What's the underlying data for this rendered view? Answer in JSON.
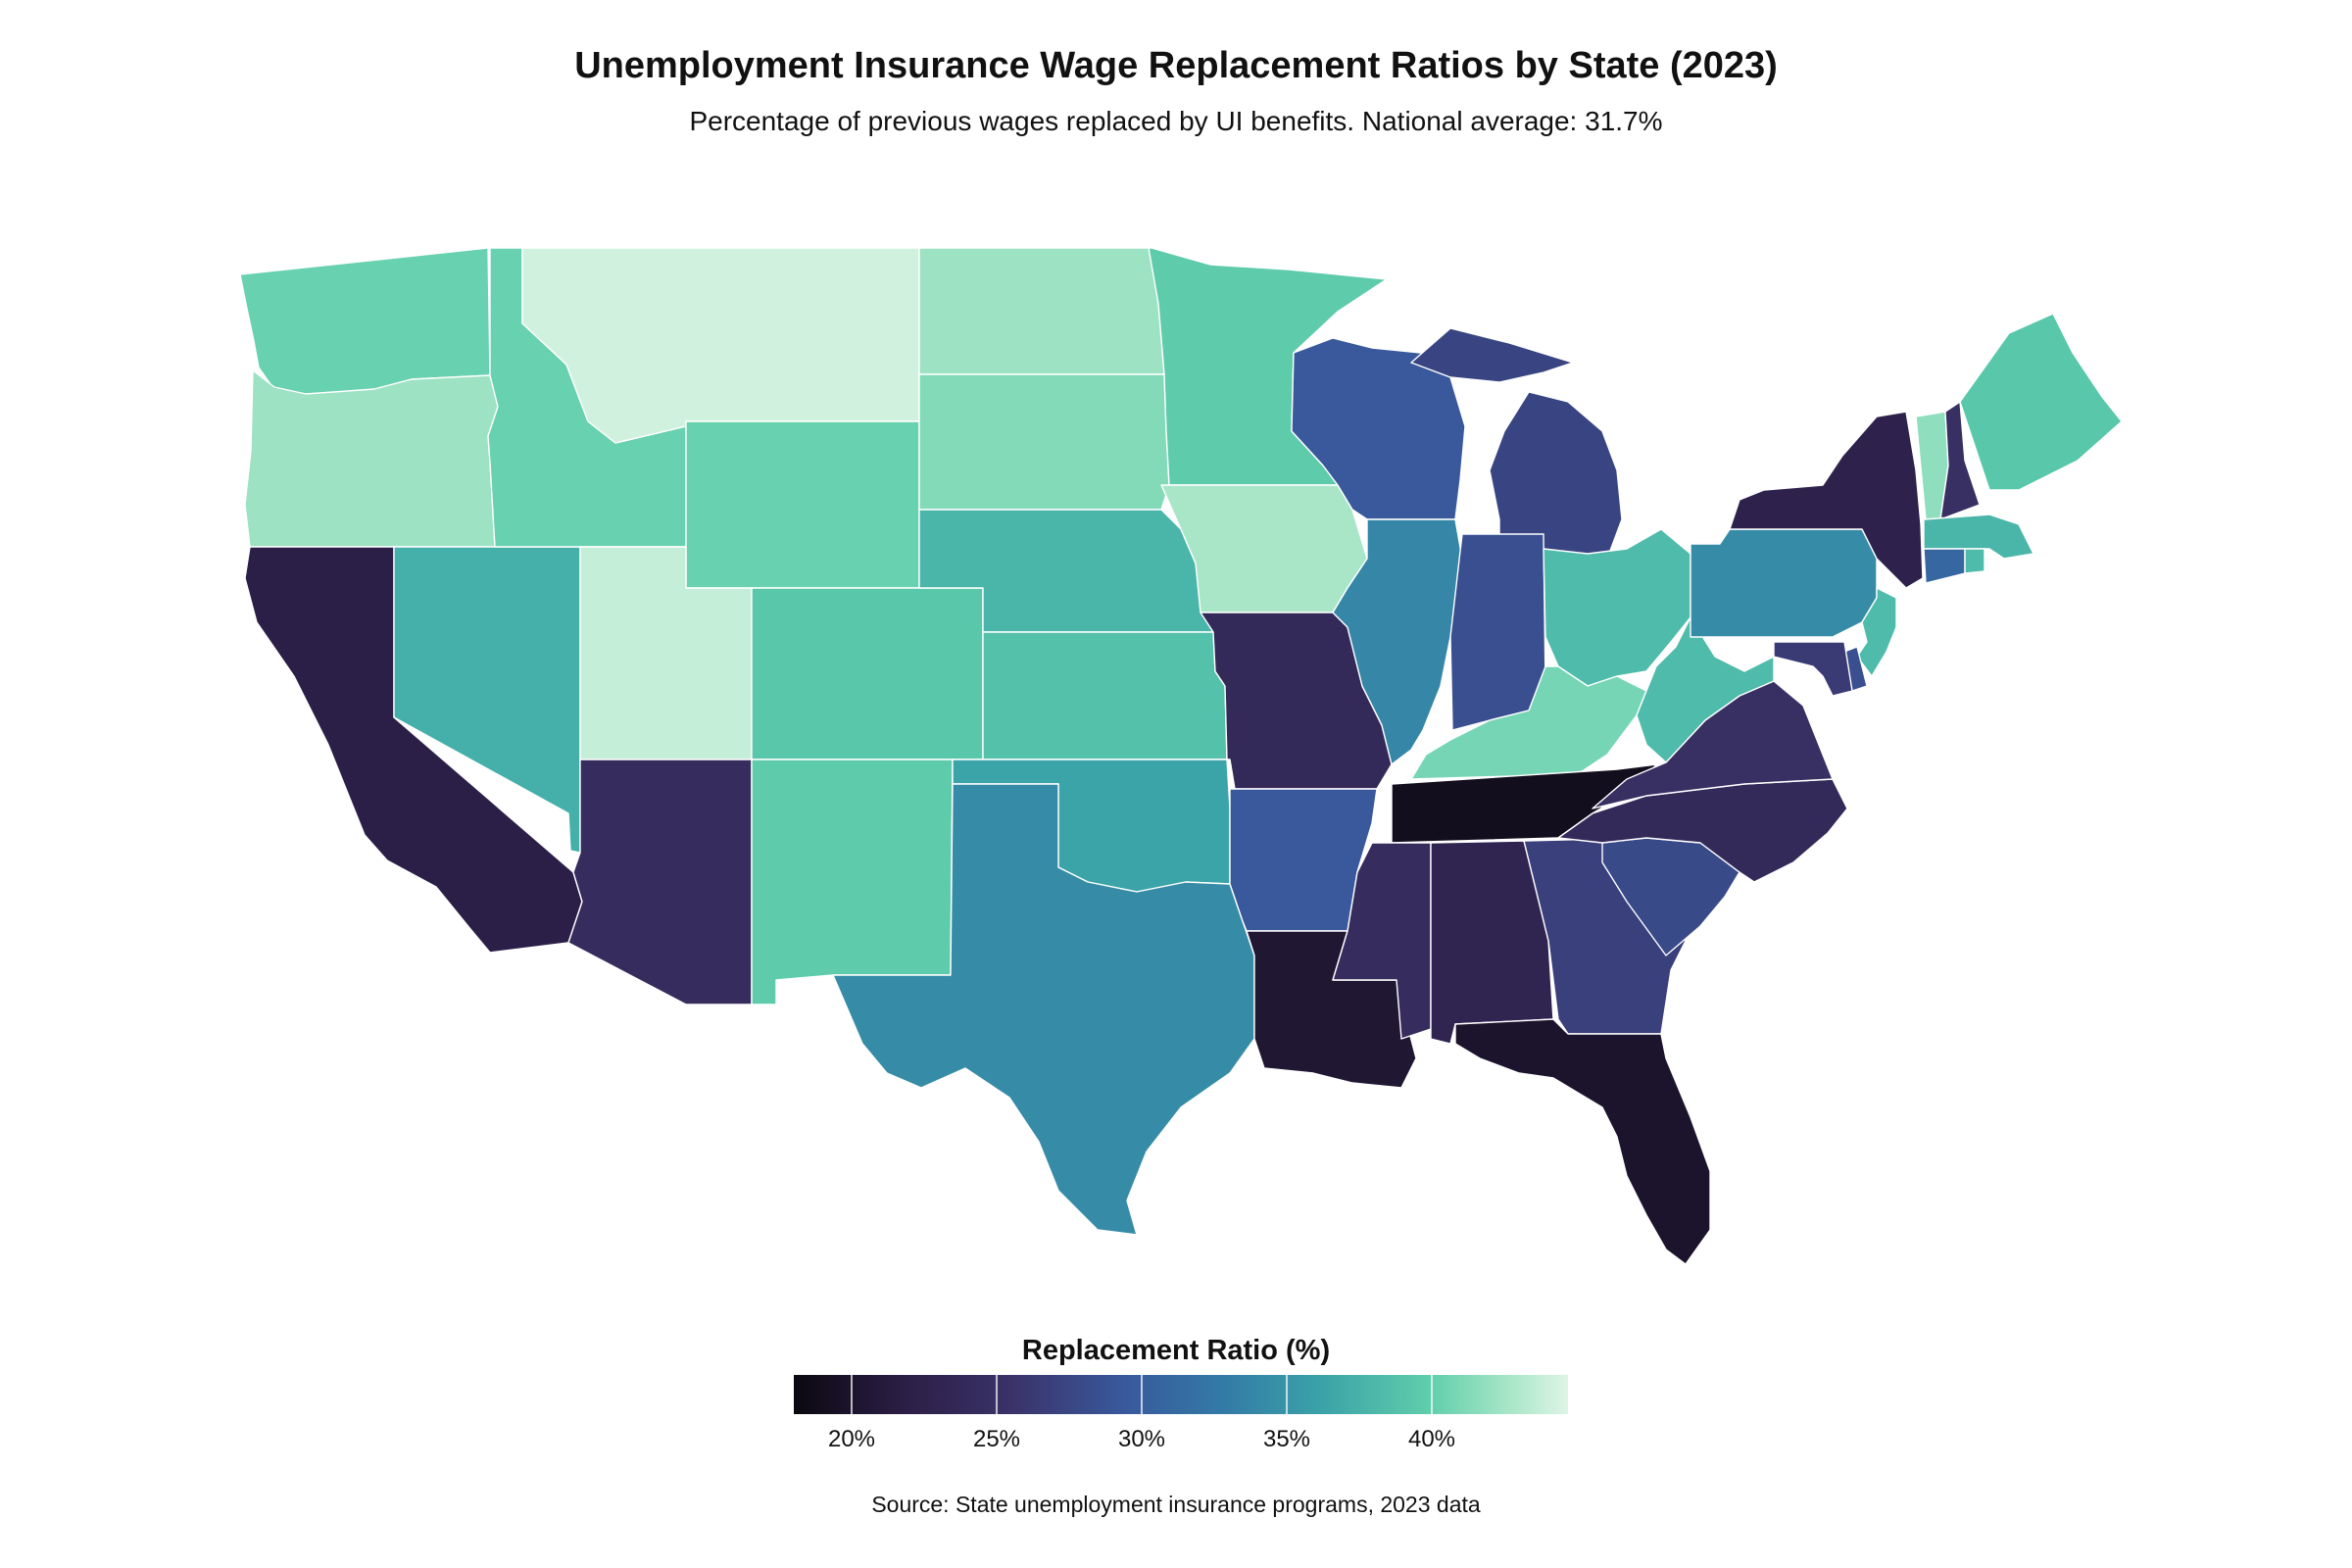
{
  "title": "Unemployment Insurance Wage Replacement Ratios by State (2023)",
  "subtitle": "Percentage of previous wages replaced by UI benefits. National average: 31.7%",
  "legend": {
    "title": "Replacement Ratio (%)",
    "ticks": [
      "20%",
      "25%",
      "30%",
      "35%",
      "40%"
    ]
  },
  "source": "Source: State unemployment insurance programs, 2023 data",
  "colors": {
    "scale_low": "#0b0810",
    "scale_mid": "#3379a6",
    "scale_high": "#def5e6",
    "border": "#ffffff"
  },
  "chart_data": {
    "type": "heatmap",
    "national_average": 31.7,
    "color_range": [
      18,
      45
    ],
    "states": [
      {
        "abbr": "WA",
        "value": 40.5
      },
      {
        "abbr": "OR",
        "value": 42.5
      },
      {
        "abbr": "CA",
        "value": 22.0
      },
      {
        "abbr": "NV",
        "value": 37.5
      },
      {
        "abbr": "ID",
        "value": 40.5
      },
      {
        "abbr": "MT",
        "value": 44.5
      },
      {
        "abbr": "WY",
        "value": 40.5
      },
      {
        "abbr": "UT",
        "value": 44.0
      },
      {
        "abbr": "AZ",
        "value": 24.5
      },
      {
        "abbr": "CO",
        "value": 39.5
      },
      {
        "abbr": "NM",
        "value": 40.0
      },
      {
        "abbr": "ND",
        "value": 42.5
      },
      {
        "abbr": "SD",
        "value": 41.5
      },
      {
        "abbr": "NE",
        "value": 38.0
      },
      {
        "abbr": "KS",
        "value": 39.0
      },
      {
        "abbr": "OK",
        "value": 36.5
      },
      {
        "abbr": "TX",
        "value": 34.5
      },
      {
        "abbr": "MN",
        "value": 40.0
      },
      {
        "abbr": "IA",
        "value": 43.0
      },
      {
        "abbr": "MO",
        "value": 24.0
      },
      {
        "abbr": "AR",
        "value": 29.5
      },
      {
        "abbr": "LA",
        "value": 20.5
      },
      {
        "abbr": "WI",
        "value": 29.5
      },
      {
        "abbr": "IL",
        "value": 34.0
      },
      {
        "abbr": "MI",
        "value": 27.5
      },
      {
        "abbr": "IN",
        "value": 28.5
      },
      {
        "abbr": "OH",
        "value": 38.5
      },
      {
        "abbr": "KY",
        "value": 41.0
      },
      {
        "abbr": "TN",
        "value": 19.0
      },
      {
        "abbr": "MS",
        "value": 24.5
      },
      {
        "abbr": "AL",
        "value": 23.0
      },
      {
        "abbr": "GA",
        "value": 27.0
      },
      {
        "abbr": "FL",
        "value": 20.0
      },
      {
        "abbr": "SC",
        "value": 28.0
      },
      {
        "abbr": "NC",
        "value": 24.0
      },
      {
        "abbr": "VA",
        "value": 25.0
      },
      {
        "abbr": "WV",
        "value": 38.5
      },
      {
        "abbr": "PA",
        "value": 34.5
      },
      {
        "abbr": "NY",
        "value": 22.5
      },
      {
        "abbr": "VT",
        "value": 42.0
      },
      {
        "abbr": "NH",
        "value": 25.0
      },
      {
        "abbr": "ME",
        "value": 39.5
      },
      {
        "abbr": "MA",
        "value": 38.0
      },
      {
        "abbr": "RI",
        "value": 38.5
      },
      {
        "abbr": "CT",
        "value": 31.0
      },
      {
        "abbr": "NJ",
        "value": 38.5
      },
      {
        "abbr": "DE",
        "value": 28.5
      },
      {
        "abbr": "MD",
        "value": 26.5
      }
    ]
  }
}
